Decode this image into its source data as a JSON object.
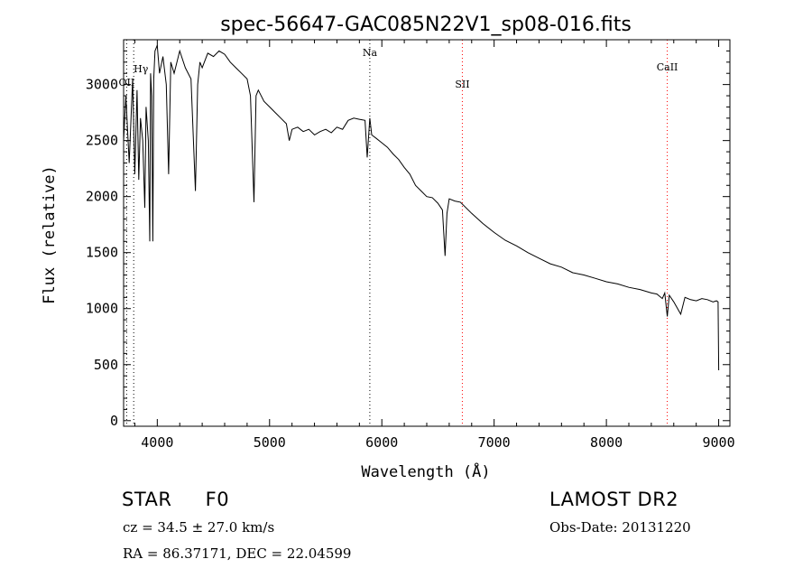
{
  "chart_data": {
    "type": "line",
    "title": "spec-56647-GAC085N22V1_sp08-016.fits",
    "xlabel": "Wavelength (Å)",
    "ylabel": "Flux (relative)",
    "xlim": [
      3700,
      9100
    ],
    "ylim": [
      -50,
      3400
    ],
    "xticks": [
      4000,
      5000,
      6000,
      7000,
      8000,
      9000
    ],
    "yticks": [
      0,
      500,
      1000,
      1500,
      2000,
      2500,
      3000
    ],
    "xtick_labels": [
      "4000",
      "5000",
      "6000",
      "7000",
      "8000",
      "9000"
    ],
    "ytick_labels": [
      "0",
      "500",
      "1000",
      "1500",
      "2000",
      "2500",
      "3000"
    ],
    "series": [
      {
        "name": "spectrum",
        "color": "#000000",
        "x": [
          3700,
          3720,
          3750,
          3780,
          3800,
          3820,
          3835,
          3850,
          3870,
          3889,
          3900,
          3920,
          3933,
          3940,
          3950,
          3960,
          3968,
          3980,
          4000,
          4020,
          4050,
          4080,
          4101,
          4120,
          4150,
          4200,
          4250,
          4300,
          4340,
          4360,
          4380,
          4400,
          4450,
          4500,
          4550,
          4600,
          4650,
          4700,
          4750,
          4800,
          4830,
          4861,
          4880,
          4900,
          4950,
          5000,
          5050,
          5100,
          5150,
          5175,
          5200,
          5250,
          5300,
          5350,
          5400,
          5450,
          5500,
          5550,
          5600,
          5650,
          5700,
          5750,
          5800,
          5850,
          5870,
          5893,
          5910,
          5950,
          6000,
          6050,
          6100,
          6150,
          6200,
          6250,
          6300,
          6350,
          6400,
          6450,
          6500,
          6540,
          6563,
          6580,
          6600,
          6650,
          6700,
          6800,
          6900,
          7000,
          7100,
          7200,
          7300,
          7400,
          7500,
          7600,
          7700,
          7800,
          7900,
          8000,
          8100,
          8200,
          8300,
          8400,
          8450,
          8498,
          8520,
          8542,
          8560,
          8600,
          8662,
          8700,
          8750,
          8800,
          8850,
          8900,
          8950,
          8980,
          8995,
          9000
        ],
        "y": [
          2500,
          2900,
          2300,
          3050,
          2200,
          2950,
          2150,
          2700,
          2500,
          1900,
          2800,
          2500,
          1600,
          3100,
          2900,
          1600,
          3050,
          3300,
          3350,
          3100,
          3250,
          3000,
          2200,
          3200,
          3100,
          3300,
          3150,
          3050,
          2050,
          3000,
          3200,
          3150,
          3280,
          3250,
          3300,
          3270,
          3200,
          3150,
          3100,
          3050,
          2900,
          1950,
          2900,
          2950,
          2850,
          2800,
          2750,
          2700,
          2650,
          2500,
          2600,
          2620,
          2580,
          2600,
          2550,
          2580,
          2600,
          2570,
          2620,
          2600,
          2680,
          2700,
          2690,
          2680,
          2350,
          2700,
          2550,
          2520,
          2480,
          2440,
          2380,
          2330,
          2260,
          2200,
          2100,
          2050,
          2000,
          1990,
          1940,
          1880,
          1470,
          1850,
          1980,
          1960,
          1950,
          1850,
          1760,
          1680,
          1610,
          1560,
          1500,
          1450,
          1400,
          1370,
          1320,
          1300,
          1270,
          1240,
          1220,
          1190,
          1170,
          1140,
          1130,
          1090,
          1140,
          930,
          1120,
          1060,
          950,
          1100,
          1080,
          1070,
          1090,
          1080,
          1060,
          1070,
          1060,
          450
        ]
      }
    ],
    "lines": [
      {
        "label": "Hγ",
        "x": 3790,
        "color": "#000000",
        "style": "dotted"
      },
      {
        "label": "OII",
        "x": 3727,
        "color": "#000000",
        "style": "dotted"
      },
      {
        "label": "Na",
        "x": 5893,
        "color": "#000000",
        "style": "dotted"
      },
      {
        "label": "SII",
        "x": 6717,
        "color": "#ff0000",
        "style": "dotted"
      },
      {
        "label": "CaII",
        "x": 8542,
        "color": "#ff0000",
        "style": "dotted"
      }
    ]
  },
  "info": {
    "class_label": "STAR",
    "subclass": "F0",
    "survey": "LAMOST DR2",
    "redshift": "cz = 34.5 ± 27.0 km/s",
    "obs_date": "Obs-Date: 20131220",
    "coords": "RA =  86.37171, DEC =  22.04599"
  }
}
